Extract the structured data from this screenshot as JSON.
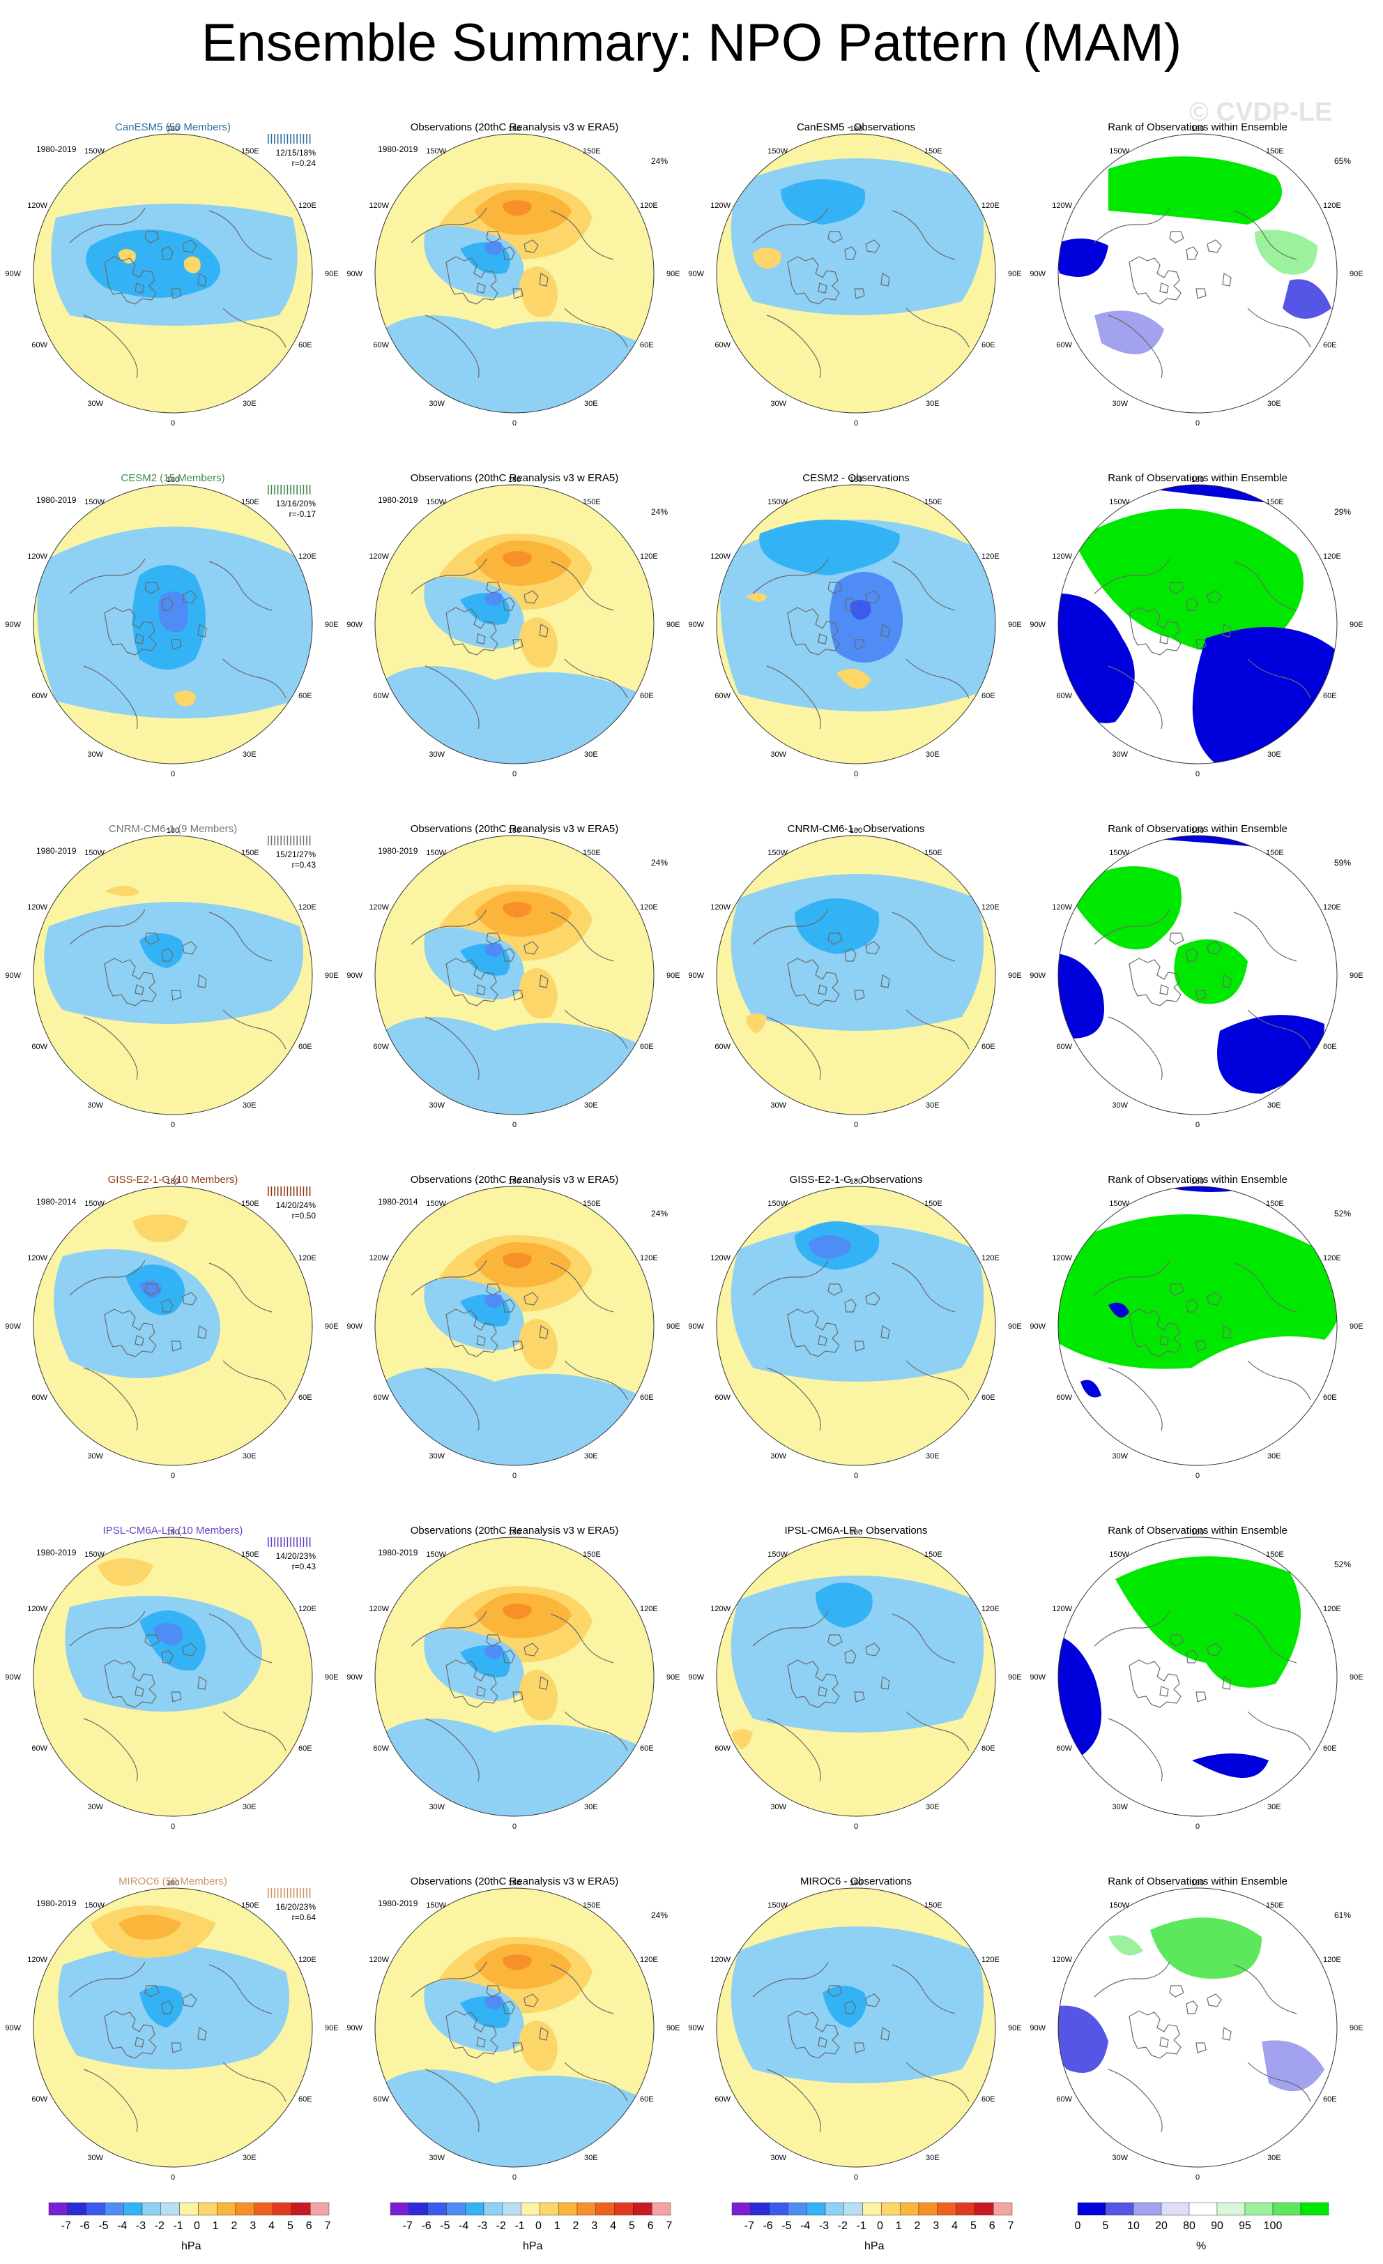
{
  "title": "Ensemble Summary: NPO Pattern (MAM)",
  "watermark": "© CVDP-LE",
  "colors": {
    "model_title": [
      "#2a6f9e",
      "#3f8a4f",
      "#747474",
      "#8c3d12",
      "#6a3fc4",
      "#c99563"
    ],
    "anomaly_scale": [
      "#7a1fd6",
      "#2b2bd9",
      "#3a5af0",
      "#4f8cf5",
      "#33b3f5",
      "#8fd0f5",
      "#b7def2",
      "#fbf5a3",
      "#fdd66a",
      "#fbb53a",
      "#f8902a",
      "#f0611f",
      "#e23a1e",
      "#c91a24",
      "#f4a3a3"
    ],
    "rank_scale": [
      "#0000dc",
      "#5656e6",
      "#a2a2ee",
      "#dedef8",
      "#ffffff",
      "#d8f6d8",
      "#9cf29c",
      "#5be85b",
      "#00e800"
    ]
  },
  "panel_labels": {
    "obs_title": "Observations (20thC Reanalysis v3 w ERA5)",
    "diff_suffix": " - Observations",
    "rank_title": "Rank of Observations within Ensemble"
  },
  "map_labels": {
    "top": "180",
    "bottom": "0",
    "left": "90W",
    "right": "90E",
    "upper_left": "150W",
    "upper_right": "150E",
    "mid_upper_left": "120W",
    "mid_upper_right": "120E",
    "mid_lower_left": "60W",
    "mid_lower_right": "60E",
    "lower_left": "30W",
    "lower_right": "30E"
  },
  "rows": [
    {
      "model": "CanESM5 (50 Members)",
      "model_short": "CanESM5",
      "period": "1980-2019",
      "stats": "12/15/18%",
      "corr": "r=0.24",
      "obs_period": "1980-2019",
      "obs_pct": "24%",
      "rank_pct": "65%",
      "style": 0
    },
    {
      "model": "CESM2 (15 Members)",
      "model_short": "CESM2",
      "period": "1980-2019",
      "stats": "13/16/20%",
      "corr": "r=-0.17",
      "obs_period": "1980-2019",
      "obs_pct": "24%",
      "rank_pct": "29%",
      "style": 1
    },
    {
      "model": "CNRM-CM6-1 (9 Members)",
      "model_short": "CNRM-CM6-1",
      "period": "1980-2019",
      "stats": "15/21/27%",
      "corr": "r=0.43",
      "obs_period": "1980-2019",
      "obs_pct": "24%",
      "rank_pct": "59%",
      "style": 2
    },
    {
      "model": "GISS-E2-1-G (10 Members)",
      "model_short": "GISS-E2-1-G",
      "period": "1980-2014",
      "stats": "14/20/24%",
      "corr": "r=0.50",
      "obs_period": "1980-2014",
      "obs_pct": "24%",
      "rank_pct": "52%",
      "style": 3
    },
    {
      "model": "IPSL-CM6A-LR (10 Members)",
      "model_short": "IPSL-CM6A-LR",
      "period": "1980-2019",
      "stats": "14/20/23%",
      "corr": "r=0.43",
      "obs_period": "1980-2019",
      "obs_pct": "",
      "rank_pct": "52%",
      "style": 4
    },
    {
      "model": "MIROC6 (50 Members)",
      "model_short": "MIROC6",
      "period": "1980-2019",
      "stats": "16/20/23%",
      "corr": "r=0.64",
      "obs_period": "1980-2019",
      "obs_pct": "24%",
      "rank_pct": "61%",
      "style": 5
    }
  ],
  "legends": {
    "anomaly_ticks": [
      "-7",
      "-6",
      "-5",
      "-4",
      "-3",
      "-2",
      "-1",
      "0",
      "1",
      "2",
      "3",
      "4",
      "5",
      "6",
      "7"
    ],
    "anomaly_unit": "hPa",
    "rank_ticks": [
      "0",
      "5",
      "10",
      "20",
      "80",
      "90",
      "95",
      "100"
    ],
    "rank_unit": "%"
  }
}
